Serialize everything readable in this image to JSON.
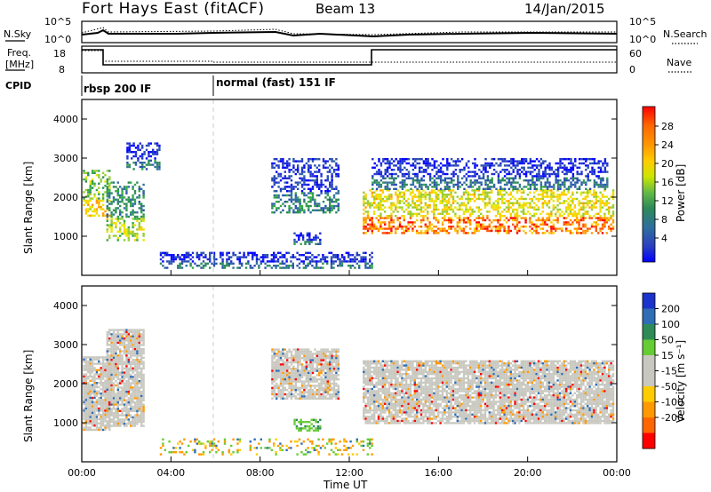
{
  "header": {
    "station": "Fort Hays East (fitACF)",
    "beam": "Beam 13",
    "date": "14/Jan/2015"
  },
  "top_panel": {
    "left_label": "N.Sky",
    "right_label": "N.Search",
    "left_ticks": [
      "10^5",
      "10^0"
    ],
    "right_ticks": [
      "10^5",
      "10^0"
    ]
  },
  "freq_panel": {
    "left_label_1": "Freq.",
    "left_label_2": "[MHz]",
    "right_label": "Nave",
    "left_ticks": [
      "18",
      "8"
    ],
    "right_ticks": [
      "60",
      "0"
    ]
  },
  "cpid_panel": {
    "label": "CPID",
    "modes": [
      "rbsp 200 IF",
      "normal (fast) 151 IF"
    ]
  },
  "chart_data": [
    {
      "type": "heatmap",
      "panel": "power",
      "x_label": "Time UT",
      "ylabel": "Slant Range [km]",
      "xlim": [
        0,
        24
      ],
      "ylim": [
        0,
        4500
      ],
      "yticks": [
        1000,
        2000,
        3000,
        4000
      ],
      "xticks": [
        "00:00",
        "04:00",
        "08:00",
        "12:00",
        "16:00",
        "20:00",
        "00:00"
      ],
      "colorbar_label": "Power [dB]",
      "colorbar_ticks": [
        "28",
        "24",
        "20",
        "16",
        "12",
        "8",
        "4"
      ],
      "colorbar_colors": [
        "#ff0000",
        "#ff5500",
        "#ff9900",
        "#ffcc00",
        "#e6e600",
        "#99cc33",
        "#33aa44",
        "#2e8b57",
        "#2f6e9e",
        "#2a4fb0",
        "#1f2fd0",
        "#0000ff"
      ],
      "regions": [
        {
          "t": [
            0.05,
            1.2
          ],
          "r": [
            1500,
            2700
          ],
          "level": 18
        },
        {
          "t": [
            1.1,
            2.8
          ],
          "r": [
            900,
            2400
          ],
          "level": 14
        },
        {
          "t": [
            2.0,
            3.5
          ],
          "r": [
            2700,
            3400
          ],
          "level": 6
        },
        {
          "t": [
            8.5,
            11.5
          ],
          "r": [
            1600,
            3000
          ],
          "level": 7
        },
        {
          "t": [
            9.5,
            10.7
          ],
          "r": [
            800,
            1100
          ],
          "level": 6
        },
        {
          "t": [
            12.6,
            23.8
          ],
          "r": [
            1100,
            2200
          ],
          "level": 22
        },
        {
          "t": [
            13.0,
            23.6
          ],
          "r": [
            2200,
            3000
          ],
          "level": 6
        },
        {
          "t": [
            3.5,
            13.0
          ],
          "r": [
            200,
            600
          ],
          "level": 6
        }
      ]
    },
    {
      "type": "heatmap",
      "panel": "velocity",
      "x_label": "Time UT",
      "ylabel": "Slant Range [km]",
      "xlim": [
        0,
        24
      ],
      "ylim": [
        0,
        4500
      ],
      "yticks": [
        1000,
        2000,
        3000,
        4000
      ],
      "xticks": [
        "00:00",
        "04:00",
        "08:00",
        "12:00",
        "16:00",
        "20:00",
        "00:00"
      ],
      "colorbar_label": "Velocity [m s⁻¹]",
      "colorbar_ticks": [
        "200",
        "100",
        "50",
        "15",
        "-15",
        "-50",
        "-100",
        "-200"
      ],
      "colorbar_colors": [
        "#1a33cc",
        "#2f6db5",
        "#2e8b57",
        "#66cc33",
        "#c8c8c0",
        "#c8c8c0",
        "#ffcc00",
        "#ff9900",
        "#ff6600",
        "#ff0000"
      ],
      "regions": [
        {
          "t": [
            0.05,
            1.2
          ],
          "r": [
            800,
            2700
          ],
          "class": "ground"
        },
        {
          "t": [
            1.1,
            2.8
          ],
          "r": [
            900,
            3400
          ],
          "class": "ground"
        },
        {
          "t": [
            8.5,
            11.5
          ],
          "r": [
            1600,
            2900
          ],
          "class": "ground"
        },
        {
          "t": [
            12.6,
            23.8
          ],
          "r": [
            1000,
            2600
          ],
          "class": "ground"
        },
        {
          "t": [
            9.5,
            10.7
          ],
          "r": [
            800,
            1100
          ],
          "class": "positive"
        },
        {
          "t": [
            3.5,
            13.0
          ],
          "r": [
            200,
            600
          ],
          "class": "mixed"
        }
      ]
    }
  ],
  "x_axis_title": "Time UT"
}
